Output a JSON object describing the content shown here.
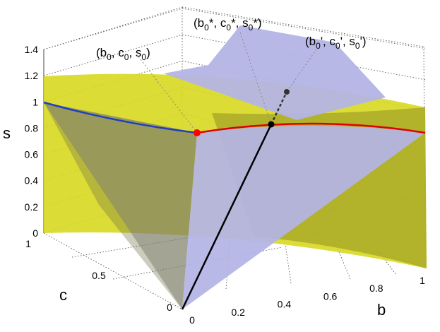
{
  "chart_data": {
    "type": "surface3d",
    "title": "",
    "axes": {
      "x": {
        "label": "b",
        "range": [
          0,
          1
        ],
        "ticks": [
          "0",
          "0.2",
          "0.4",
          "0.6",
          "0.8",
          "1"
        ]
      },
      "y": {
        "label": "c",
        "range": [
          0,
          1
        ],
        "ticks": [
          "0",
          "0.5",
          "1"
        ]
      },
      "z": {
        "label": "s",
        "range": [
          0,
          1.4
        ],
        "ticks": [
          "0",
          "0.2",
          "0.4",
          "0.6",
          "0.8",
          "1",
          "1.2",
          "1.4"
        ]
      }
    },
    "grid": true,
    "surfaces": [
      {
        "role": "yellow constraint surface",
        "color": "#d8d820"
      },
      {
        "role": "grey plane",
        "color": "#8c8c8c"
      },
      {
        "role": "lavender plane",
        "color": "#b4b4e6"
      }
    ],
    "curves": [
      {
        "color": "#1f3fbf"
      },
      {
        "color": "#e00000"
      }
    ],
    "points": [
      {
        "label": "(b0, c0, s0)",
        "color": "#ff0000"
      },
      {
        "label": "(b0*, c0*, s0*)",
        "color": "#000000"
      },
      {
        "label": "(b0', c0', s0')",
        "color": "#333333"
      }
    ],
    "annotations": {
      "p0": {
        "base": "(b",
        "sub1": "0",
        "mid1": ", c",
        "sub2": "0",
        "mid2": ", s",
        "sub3": "0",
        "end": ")"
      },
      "pstar": {
        "base": "(b",
        "sub1": "0",
        "mid1": "*, c",
        "sub2": "0",
        "mid2": "*, s",
        "sub3": "0",
        "end": "*)"
      },
      "pprime": {
        "base": "(b",
        "sub1": "0",
        "mid1": "', c",
        "sub2": "0",
        "mid2": "', s",
        "sub3": "0",
        "end": "')"
      }
    }
  }
}
